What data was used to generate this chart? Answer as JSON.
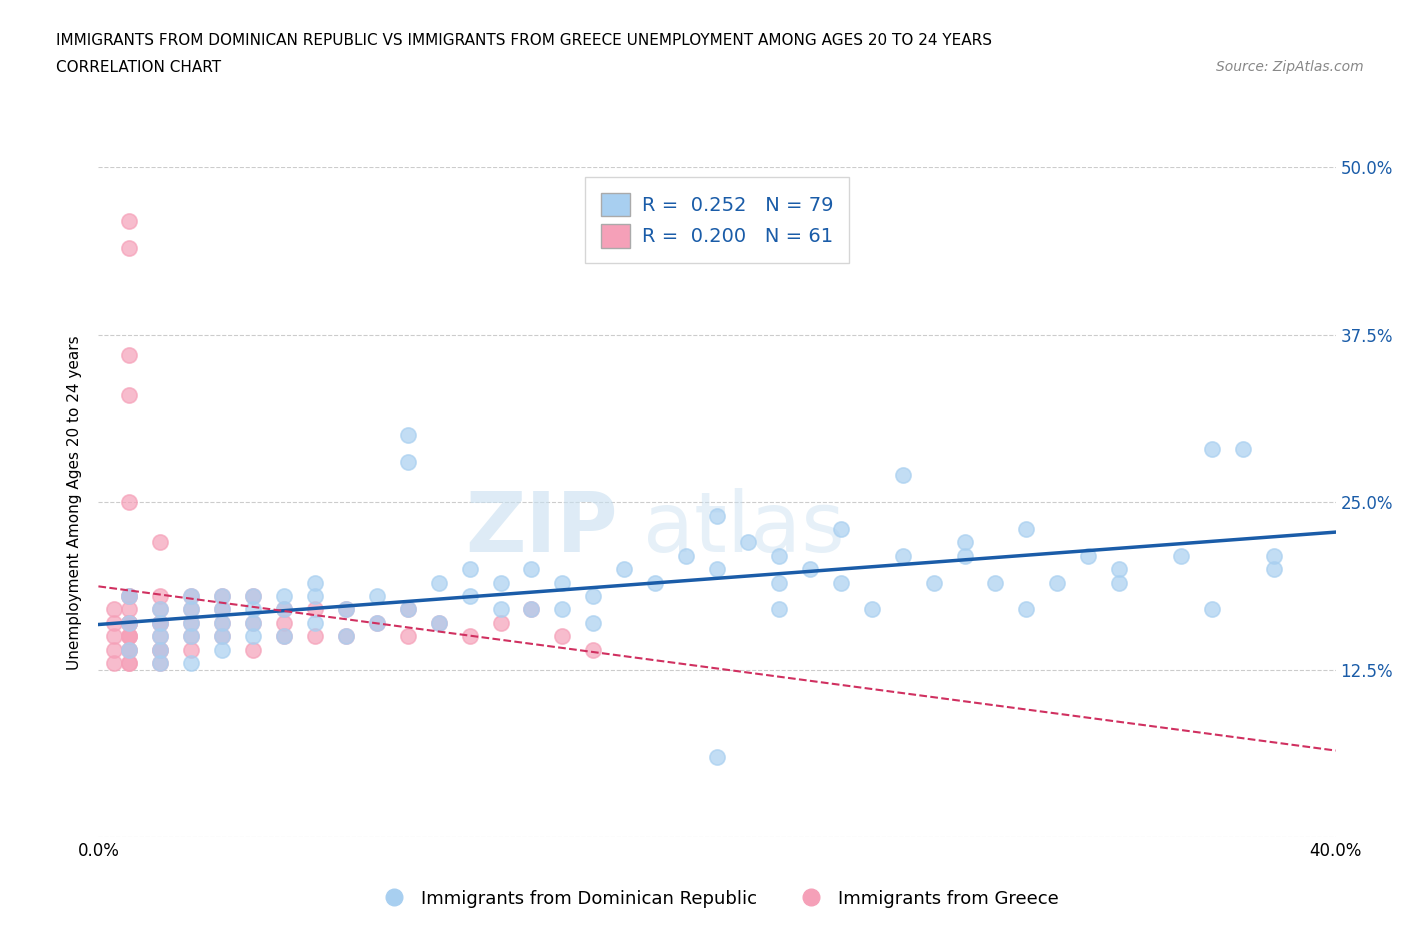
{
  "title_line1": "IMMIGRANTS FROM DOMINICAN REPUBLIC VS IMMIGRANTS FROM GREECE UNEMPLOYMENT AMONG AGES 20 TO 24 YEARS",
  "title_line2": "CORRELATION CHART",
  "source_text": "Source: ZipAtlas.com",
  "ylabel": "Unemployment Among Ages 20 to 24 years",
  "legend1_label": "Immigrants from Dominican Republic",
  "legend2_label": "Immigrants from Greece",
  "r1": 0.252,
  "n1": 79,
  "r2": 0.2,
  "n2": 61,
  "color_dr": "#a8cff0",
  "color_gr": "#f5a0b8",
  "color_dr_line": "#1a5ca8",
  "color_gr_line": "#d03060",
  "xlim": [
    0.0,
    0.4
  ],
  "ylim": [
    0.0,
    0.5
  ],
  "ytick_positions": [
    0.0,
    0.125,
    0.25,
    0.375,
    0.5
  ],
  "ytick_labels": [
    "",
    "12.5%",
    "25.0%",
    "37.5%",
    "50.0%"
  ],
  "xtick_positions": [
    0.0,
    0.05,
    0.1,
    0.15,
    0.2,
    0.25,
    0.3,
    0.35,
    0.4
  ],
  "watermark_zip": "ZIP",
  "watermark_atlas": "atlas",
  "dr_x": [
    0.01,
    0.01,
    0.01,
    0.02,
    0.02,
    0.02,
    0.02,
    0.02,
    0.03,
    0.03,
    0.03,
    0.03,
    0.03,
    0.04,
    0.04,
    0.04,
    0.04,
    0.04,
    0.05,
    0.05,
    0.05,
    0.05,
    0.06,
    0.06,
    0.06,
    0.07,
    0.07,
    0.07,
    0.08,
    0.08,
    0.09,
    0.09,
    0.1,
    0.1,
    0.1,
    0.11,
    0.11,
    0.12,
    0.12,
    0.13,
    0.13,
    0.14,
    0.14,
    0.15,
    0.15,
    0.16,
    0.16,
    0.17,
    0.18,
    0.19,
    0.2,
    0.2,
    0.21,
    0.22,
    0.22,
    0.23,
    0.24,
    0.25,
    0.26,
    0.27,
    0.28,
    0.29,
    0.3,
    0.31,
    0.32,
    0.33,
    0.35,
    0.36,
    0.37,
    0.38,
    0.2,
    0.22,
    0.24,
    0.26,
    0.28,
    0.3,
    0.33,
    0.36,
    0.38
  ],
  "dr_y": [
    0.16,
    0.14,
    0.18,
    0.15,
    0.17,
    0.13,
    0.16,
    0.14,
    0.16,
    0.18,
    0.15,
    0.17,
    0.13,
    0.16,
    0.18,
    0.14,
    0.17,
    0.15,
    0.16,
    0.18,
    0.15,
    0.17,
    0.18,
    0.15,
    0.17,
    0.19,
    0.16,
    0.18,
    0.17,
    0.15,
    0.18,
    0.16,
    0.28,
    0.3,
    0.17,
    0.19,
    0.16,
    0.2,
    0.18,
    0.17,
    0.19,
    0.2,
    0.17,
    0.19,
    0.17,
    0.18,
    0.16,
    0.2,
    0.19,
    0.21,
    0.24,
    0.2,
    0.22,
    0.21,
    0.19,
    0.2,
    0.19,
    0.17,
    0.21,
    0.19,
    0.21,
    0.19,
    0.17,
    0.19,
    0.21,
    0.19,
    0.21,
    0.17,
    0.29,
    0.21,
    0.06,
    0.17,
    0.23,
    0.27,
    0.22,
    0.23,
    0.2,
    0.29,
    0.2
  ],
  "gr_x": [
    0.005,
    0.005,
    0.005,
    0.005,
    0.005,
    0.01,
    0.01,
    0.01,
    0.01,
    0.01,
    0.01,
    0.01,
    0.01,
    0.01,
    0.01,
    0.01,
    0.01,
    0.01,
    0.01,
    0.01,
    0.01,
    0.02,
    0.02,
    0.02,
    0.02,
    0.02,
    0.02,
    0.02,
    0.02,
    0.03,
    0.03,
    0.03,
    0.03,
    0.03,
    0.04,
    0.04,
    0.04,
    0.04,
    0.05,
    0.05,
    0.05,
    0.06,
    0.06,
    0.06,
    0.07,
    0.07,
    0.08,
    0.08,
    0.09,
    0.1,
    0.1,
    0.11,
    0.12,
    0.13,
    0.14,
    0.15,
    0.16,
    0.02,
    0.01,
    0.01,
    0.01
  ],
  "gr_y": [
    0.14,
    0.16,
    0.13,
    0.17,
    0.15,
    0.16,
    0.14,
    0.18,
    0.15,
    0.16,
    0.17,
    0.13,
    0.16,
    0.15,
    0.14,
    0.18,
    0.13,
    0.16,
    0.15,
    0.46,
    0.44,
    0.16,
    0.14,
    0.17,
    0.15,
    0.13,
    0.16,
    0.14,
    0.18,
    0.17,
    0.15,
    0.16,
    0.14,
    0.18,
    0.16,
    0.18,
    0.15,
    0.17,
    0.16,
    0.18,
    0.14,
    0.17,
    0.15,
    0.16,
    0.17,
    0.15,
    0.17,
    0.15,
    0.16,
    0.17,
    0.15,
    0.16,
    0.15,
    0.16,
    0.17,
    0.15,
    0.14,
    0.22,
    0.36,
    0.33,
    0.25
  ]
}
